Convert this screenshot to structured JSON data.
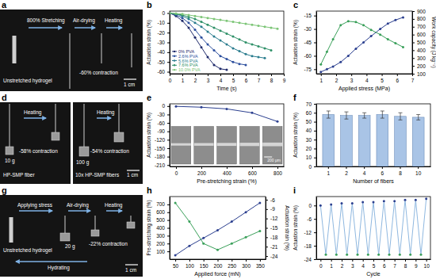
{
  "chart_data": [
    {
      "type": "photo",
      "title": "a",
      "annotations": [
        "Unstretched hydrogel",
        "800% Stretching",
        "Air-drying",
        "Heating",
        "-60% contraction",
        "1 cm"
      ]
    },
    {
      "type": "line",
      "title": "b",
      "marker": "circle",
      "legend": "lower left",
      "x_label": "Time (s)",
      "y_label": "Actuation strain (%)",
      "x": [
        0,
        0.5,
        1,
        1.5,
        2,
        2.5,
        3,
        3.5,
        4,
        4.5,
        5,
        5.5,
        6,
        6.5,
        7,
        7.5,
        8,
        8.5
      ],
      "xlim": [
        0,
        9
      ],
      "xticks": [
        0,
        1,
        2,
        3,
        4,
        5,
        6,
        7,
        8,
        9
      ],
      "ylim": [
        -62,
        2
      ],
      "yticks": [
        0,
        -10,
        -20,
        -30,
        -40,
        -50,
        -60
      ],
      "series": [
        {
          "name": "0% PVA",
          "color": "#1f2a6b",
          "values": [
            0,
            -3,
            -8,
            -15,
            -25,
            -35,
            -45,
            -53,
            -57,
            -58,
            null,
            null,
            null,
            null,
            null,
            null,
            null,
            null
          ]
        },
        {
          "name": "2.6% PVA",
          "color": "#2c4f9e",
          "values": [
            0,
            -2,
            -5,
            -10,
            -17,
            -25,
            -32,
            -38,
            -44,
            -47,
            -50,
            -52,
            -53,
            null,
            null,
            null,
            null,
            null
          ]
        },
        {
          "name": "5.6% PVA",
          "color": "#2a7c8e",
          "values": [
            0,
            -1,
            -3,
            -6,
            -10,
            -14,
            -19,
            -24,
            -28,
            -32,
            -36,
            -39,
            -42,
            -44,
            -45,
            -46,
            null,
            null
          ]
        },
        {
          "name": "7.6% PVA",
          "color": "#2f9068",
          "values": [
            0,
            -1,
            -2,
            -4,
            -6,
            -9,
            -12,
            -15,
            -18,
            -21,
            -24,
            -27,
            -30,
            -32,
            -34,
            -36,
            -38,
            null
          ]
        },
        {
          "name": "10.0% PVA",
          "color": "#7cc576",
          "values": [
            0,
            -0.5,
            -1,
            -2,
            -3,
            -4,
            -5,
            -6,
            -7,
            -8,
            -9,
            -10,
            -11,
            -12,
            -13,
            -14,
            -15,
            -16
          ]
        }
      ]
    },
    {
      "type": "line",
      "title": "c",
      "marker": "circle",
      "x_label": "Applied stress (MPa)",
      "y_label": "Actuation strain (%)",
      "y2_label": "Work capacity (J kg⁻¹)",
      "x": [
        1,
        1.4,
        1.8,
        2.3,
        2.8,
        3.3,
        3.8,
        4.3,
        4.9,
        5.4,
        5.9,
        6.4
      ],
      "xlim": [
        0.7,
        7
      ],
      "xticks": [
        1,
        2,
        3,
        4,
        5,
        6,
        7
      ],
      "ylim": [
        -80,
        -10
      ],
      "yticks": [
        -75,
        -60,
        -45,
        -30,
        -15
      ],
      "y2lim": [
        100,
        900
      ],
      "y2ticks": [
        100,
        200,
        300,
        400,
        500,
        600,
        700,
        800,
        900
      ],
      "series": [
        {
          "color": "#2b3f8f",
          "values": [
            -78,
            -75,
            -72,
            -67,
            -60,
            -52,
            -45,
            -38,
            -30,
            -24,
            -20,
            -17
          ]
        },
        {
          "color": "#3aa05a",
          "axis": "y2",
          "values": [
            220,
            380,
            540,
            720,
            770,
            760,
            720,
            660,
            600,
            540,
            490,
            440
          ]
        }
      ]
    },
    {
      "type": "photo",
      "title": "d",
      "annotations": [
        "Heating",
        "10 g",
        "-58% contraction",
        "HP-SMP fiber",
        "Heating",
        "100 g",
        "-54% contraction",
        "10x HP-SMP fibers",
        "1 cm"
      ]
    },
    {
      "type": "line",
      "title": "e",
      "marker": "circle",
      "x_label": "Pre-stretching strain (%)",
      "y_label": "Actuation strain (%)",
      "annotations": [
        "200 μm"
      ],
      "x": [
        0,
        200,
        400,
        600,
        800
      ],
      "xlim": [
        -50,
        850
      ],
      "xticks": [
        0,
        200,
        400,
        600,
        800
      ],
      "ylim": [
        -215,
        8
      ],
      "yticks": [
        0,
        -30,
        -60,
        -90,
        -120,
        -150,
        -180,
        -210
      ],
      "series": [
        {
          "color": "#2b3f8f",
          "values": [
            -1,
            -4,
            -10,
            -24,
            -55
          ]
        }
      ]
    },
    {
      "type": "bar",
      "title": "f",
      "color": "#a9c4e6",
      "x_label": "Number of fibers",
      "y_label": "Actuation strain (%)",
      "categories": [
        "1",
        "2",
        "4",
        "6",
        "8",
        "10"
      ],
      "values": [
        58,
        57,
        57,
        58,
        56,
        55
      ],
      "errors": [
        4,
        4,
        3,
        4,
        4,
        3
      ],
      "ylim": [
        0,
        70
      ],
      "yticks": [
        0,
        10,
        20,
        30,
        40,
        50,
        60,
        70
      ]
    },
    {
      "type": "photo",
      "title": "g",
      "annotations": [
        "Applying stress",
        "Air-drying",
        "Heating",
        "Unstretched hydrogel",
        "20 g",
        "-22% contraction",
        "Hydrating",
        "1 cm"
      ]
    },
    {
      "type": "line",
      "title": "h",
      "marker": "circle",
      "x_label": "Applied force (mN)",
      "y_label": "Pre-stretching strain (%)",
      "y2_label": "Actuation strain (%)",
      "x": [
        50,
        100,
        150,
        200,
        250,
        300,
        350
      ],
      "xlim": [
        30,
        370
      ],
      "xticks": [
        50,
        100,
        150,
        200,
        250,
        300,
        350
      ],
      "ylim": [
        0,
        800
      ],
      "yticks": [
        100,
        200,
        300,
        400,
        500,
        600,
        700
      ],
      "y2lim": [
        -25,
        -5
      ],
      "y2ticks": [
        -24,
        -21,
        -18,
        -15,
        -12,
        -9,
        -6
      ],
      "series": [
        {
          "color": "#2b3f8f",
          "values": [
            50,
            170,
            270,
            370,
            480,
            600,
            720
          ]
        },
        {
          "color": "#3aa05a",
          "axis": "y2",
          "values": [
            -7,
            -13,
            -20,
            -22,
            -20,
            -18,
            -16
          ]
        }
      ]
    },
    {
      "type": "line",
      "title": "i",
      "marker": "circle",
      "x_label": "Cycle",
      "y_label": "Actuation strain (%)",
      "x": [
        0,
        0.5,
        1,
        1.5,
        2,
        2.5,
        3,
        3.5,
        4,
        4.5,
        5,
        5.5,
        6,
        6.5,
        7,
        7.5,
        8,
        8.5,
        9,
        9.5,
        10
      ],
      "xlim": [
        -0.4,
        10.4
      ],
      "xticks": [
        0,
        1,
        2,
        3,
        4,
        5,
        6,
        7,
        8,
        9,
        10
      ],
      "ylim": [
        -24,
        4
      ],
      "yticks": [
        -24,
        -18,
        -12,
        -6,
        0
      ],
      "series": [
        {
          "color": "#8fb8e0",
          "colors": [
            "#2b3f8f",
            "#3aa05a",
            "#2b3f8f",
            "#3aa05a",
            "#2b3f8f",
            "#3aa05a",
            "#2b3f8f",
            "#3aa05a",
            "#2b3f8f",
            "#3aa05a",
            "#2b3f8f",
            "#3aa05a",
            "#2b3f8f",
            "#3aa05a",
            "#2b3f8f",
            "#3aa05a",
            "#2b3f8f",
            "#3aa05a",
            "#2b3f8f",
            "#3aa05a",
            "#2b3f8f"
          ],
          "values": [
            0,
            -22,
            0.5,
            -22,
            1,
            -22,
            1,
            -22,
            1.5,
            -22,
            1.5,
            -22,
            2,
            -22,
            2,
            -22,
            2.5,
            -22,
            2.5,
            -22,
            3
          ]
        }
      ]
    }
  ]
}
